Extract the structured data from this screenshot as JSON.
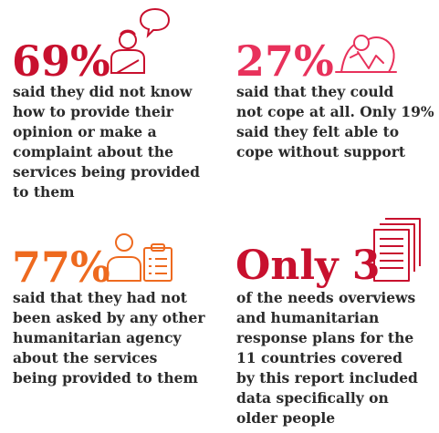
{
  "colors": {
    "red": "#c8102e",
    "pink": "#e8315b",
    "orange": "#ee6a1f",
    "text": "#2b2b2b"
  },
  "stats": [
    {
      "figure": "69%",
      "icon": "speech-bubble-person-icon",
      "lines": [
        "said they did not know",
        "how to provide their",
        "opinion or make a",
        "complaint about the",
        "services being provided",
        "to them"
      ]
    },
    {
      "figure": "27%",
      "icon": "distressed-person-icon",
      "lines": [
        "said that they could",
        "not cope at all. Only 19%",
        "said they felt able to",
        "cope without support"
      ]
    },
    {
      "figure": "77%",
      "icon": "person-clipboard-icon",
      "lines": [
        "said that they had not",
        "been asked by any other",
        "humanitarian agency",
        "about the services",
        "being provided to them"
      ]
    },
    {
      "figure": "Only 3",
      "icon": "documents-stack-icon",
      "lines": [
        "of the needs overviews",
        "and humanitarian",
        "response plans for the",
        "11 countries covered",
        "by this report included",
        "data specifically on",
        "older people"
      ]
    }
  ]
}
